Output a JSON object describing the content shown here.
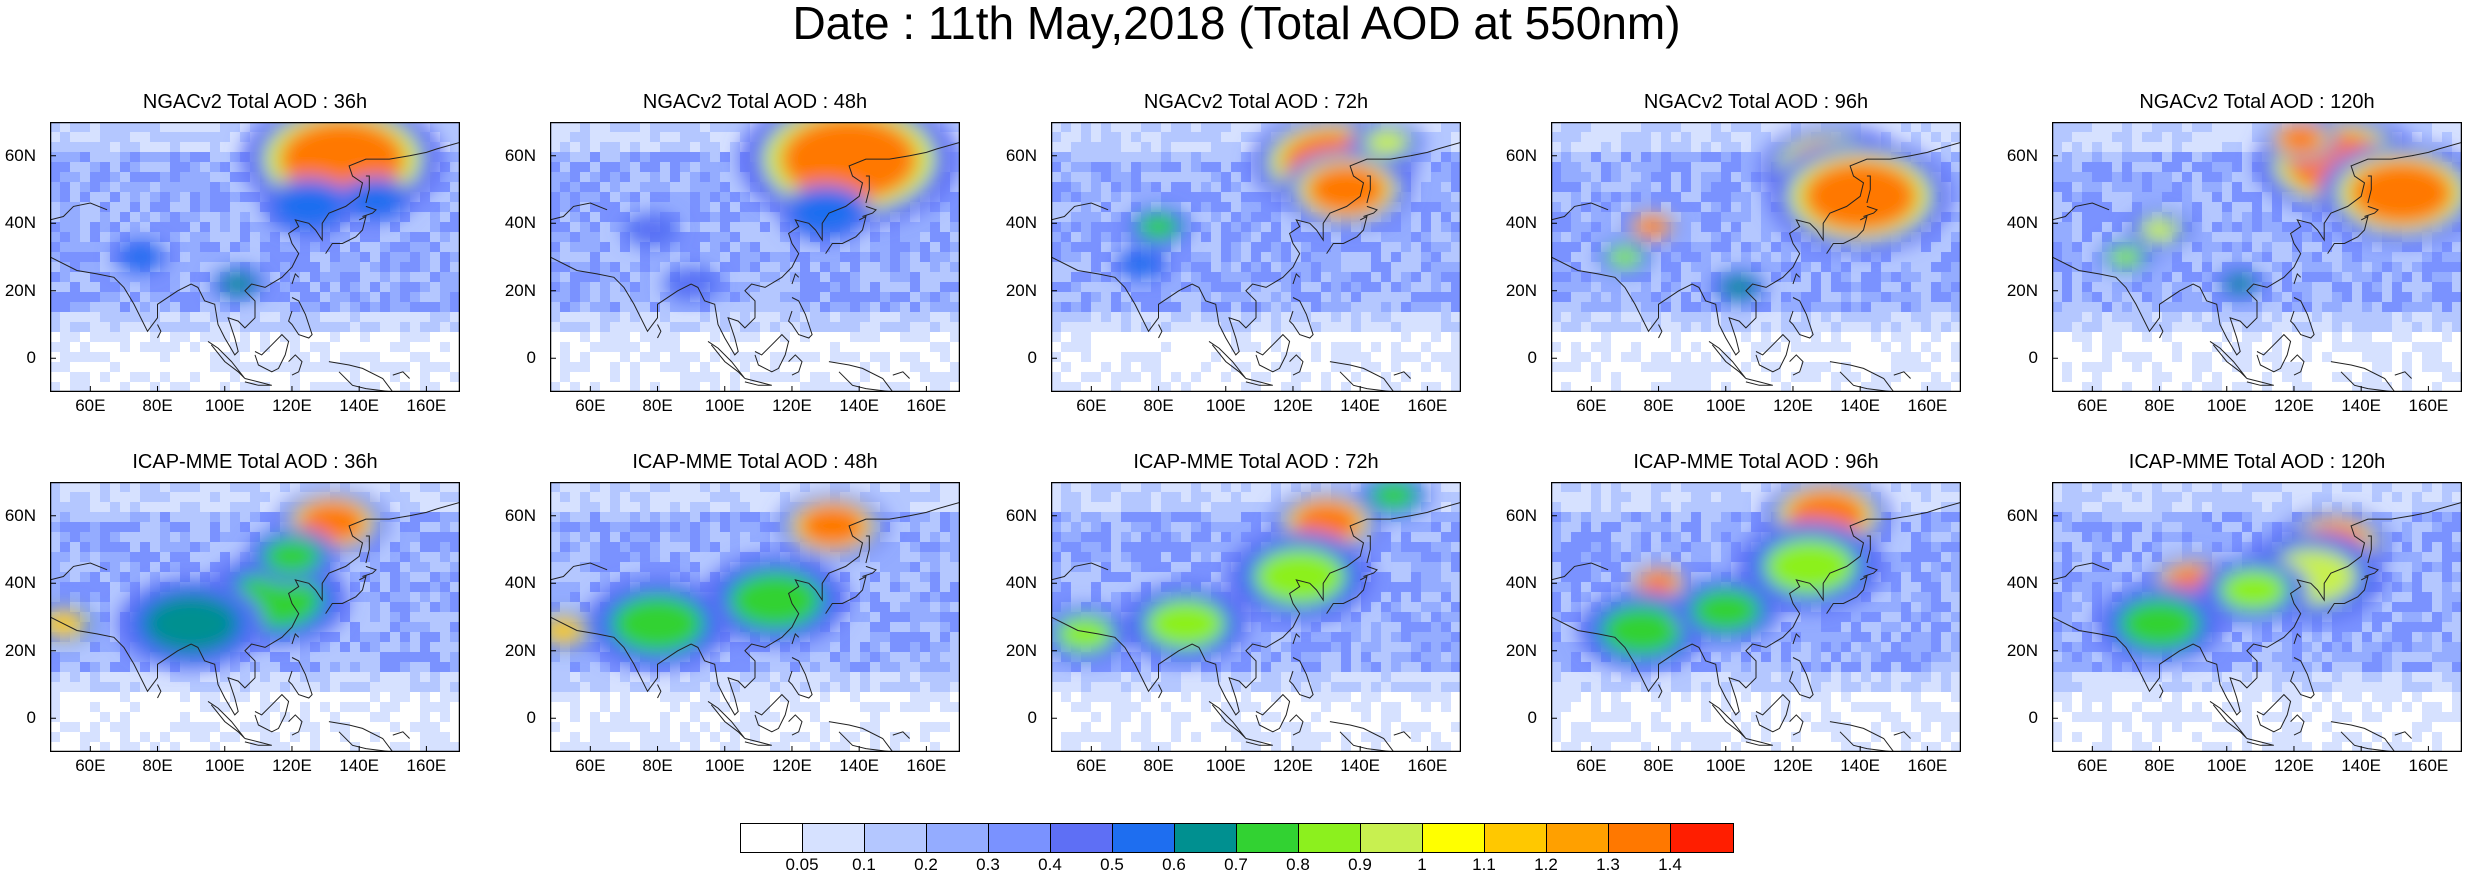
{
  "title": "Date : 11th May,2018 (Total AOD at 550nm)",
  "panels": [
    {
      "label": "NGACv2 Total AOD : 36h",
      "hotspots": [
        {
          "lon": 135,
          "lat": 59,
          "level": 14,
          "size": 2.2
        },
        {
          "lon": 125,
          "lat": 45,
          "level": 6,
          "size": 1.0
        },
        {
          "lon": 145,
          "lat": 47,
          "level": 6,
          "size": 0.8
        },
        {
          "lon": 104,
          "lat": 22,
          "level": 7,
          "size": 0.6
        },
        {
          "lon": 75,
          "lat": 30,
          "level": 6,
          "size": 0.6
        }
      ]
    },
    {
      "label": "NGACv2 Total AOD : 48h",
      "hotspots": [
        {
          "lon": 137,
          "lat": 59,
          "level": 14,
          "size": 2.4
        },
        {
          "lon": 130,
          "lat": 43,
          "level": 6,
          "size": 1.0
        },
        {
          "lon": 78,
          "lat": 38,
          "level": 5,
          "size": 0.6
        },
        {
          "lon": 90,
          "lat": 22,
          "level": 5,
          "size": 0.6
        }
      ]
    },
    {
      "label": "NGACv2 Total AOD : 72h",
      "hotspots": [
        {
          "lon": 132,
          "lat": 58,
          "level": 14,
          "size": 1.8
        },
        {
          "lon": 136,
          "lat": 50,
          "level": 14,
          "size": 1.4
        },
        {
          "lon": 80,
          "lat": 39,
          "level": 8,
          "size": 0.7
        },
        {
          "lon": 75,
          "lat": 28,
          "level": 6,
          "size": 0.6
        },
        {
          "lon": 148,
          "lat": 64,
          "level": 10,
          "size": 0.8
        }
      ]
    },
    {
      "label": "NGACv2 Total AOD : 96h",
      "hotspots": [
        {
          "lon": 132,
          "lat": 56,
          "level": 14,
          "size": 1.6
        },
        {
          "lon": 140,
          "lat": 48,
          "level": 14,
          "size": 2.0
        },
        {
          "lon": 78,
          "lat": 39,
          "level": 14,
          "size": 0.6
        },
        {
          "lon": 70,
          "lat": 30,
          "level": 9,
          "size": 0.6
        },
        {
          "lon": 104,
          "lat": 21,
          "level": 7,
          "size": 0.6
        }
      ]
    },
    {
      "label": "NGACv2 Total AOD : 120h",
      "hotspots": [
        {
          "lon": 133,
          "lat": 58,
          "level": 14,
          "size": 1.8
        },
        {
          "lon": 152,
          "lat": 49,
          "level": 14,
          "size": 1.8
        },
        {
          "lon": 122,
          "lat": 65,
          "level": 14,
          "size": 0.8
        },
        {
          "lon": 80,
          "lat": 38,
          "level": 10,
          "size": 0.7
        },
        {
          "lon": 70,
          "lat": 30,
          "level": 9,
          "size": 0.6
        },
        {
          "lon": 104,
          "lat": 22,
          "level": 7,
          "size": 0.5
        }
      ]
    },
    {
      "label": "ICAP-MME Total AOD : 36h",
      "hotspots": [
        {
          "lon": 132,
          "lat": 58,
          "level": 14,
          "size": 1.2
        },
        {
          "lon": 115,
          "lat": 35,
          "level": 8,
          "size": 1.6
        },
        {
          "lon": 90,
          "lat": 28,
          "level": 7,
          "size": 1.6
        },
        {
          "lon": 52,
          "lat": 28,
          "level": 12,
          "size": 0.7
        },
        {
          "lon": 120,
          "lat": 48,
          "level": 8,
          "size": 1.0
        }
      ]
    },
    {
      "label": "ICAP-MME Total AOD : 48h",
      "hotspots": [
        {
          "lon": 132,
          "lat": 57,
          "level": 14,
          "size": 1.2
        },
        {
          "lon": 115,
          "lat": 35,
          "level": 8,
          "size": 1.6
        },
        {
          "lon": 80,
          "lat": 28,
          "level": 8,
          "size": 1.6
        },
        {
          "lon": 52,
          "lat": 26,
          "level": 12,
          "size": 0.7
        }
      ]
    },
    {
      "label": "ICAP-MME Total AOD : 72h",
      "hotspots": [
        {
          "lon": 130,
          "lat": 58,
          "level": 14,
          "size": 1.2
        },
        {
          "lon": 122,
          "lat": 42,
          "level": 9,
          "size": 1.6
        },
        {
          "lon": 88,
          "lat": 28,
          "level": 9,
          "size": 1.4
        },
        {
          "lon": 58,
          "lat": 25,
          "level": 9,
          "size": 1.0
        },
        {
          "lon": 150,
          "lat": 66,
          "level": 8,
          "size": 0.8
        }
      ]
    },
    {
      "label": "ICAP-MME Total AOD : 96h",
      "hotspots": [
        {
          "lon": 130,
          "lat": 60,
          "level": 14,
          "size": 1.4
        },
        {
          "lon": 125,
          "lat": 45,
          "level": 9,
          "size": 1.6
        },
        {
          "lon": 80,
          "lat": 40,
          "level": 14,
          "size": 0.7
        },
        {
          "lon": 75,
          "lat": 26,
          "level": 8,
          "size": 1.4
        },
        {
          "lon": 100,
          "lat": 32,
          "level": 8,
          "size": 1.2
        }
      ]
    },
    {
      "label": "ICAP-MME Total AOD : 120h",
      "hotspots": [
        {
          "lon": 132,
          "lat": 52,
          "level": 14,
          "size": 1.2
        },
        {
          "lon": 90,
          "lat": 40,
          "level": 14,
          "size": 1.0
        },
        {
          "lon": 125,
          "lat": 42,
          "level": 10,
          "size": 1.6
        },
        {
          "lon": 80,
          "lat": 28,
          "level": 8,
          "size": 1.4
        },
        {
          "lon": 108,
          "lat": 38,
          "level": 9,
          "size": 1.2
        }
      ]
    }
  ],
  "map": {
    "lon_range": [
      48,
      170
    ],
    "lat_range": [
      -10,
      70
    ],
    "x_ticks": [
      "60E",
      "80E",
      "100E",
      "120E",
      "140E",
      "160E"
    ],
    "x_tick_values": [
      60,
      80,
      100,
      120,
      140,
      160
    ],
    "y_ticks": [
      "60N",
      "40N",
      "20N",
      "0"
    ],
    "y_tick_values": [
      60,
      40,
      20,
      0
    ]
  },
  "colorbar": {
    "colors": [
      "#ffffff",
      "#d6e1ff",
      "#b4c7ff",
      "#94acff",
      "#7a92ff",
      "#5e6ff5",
      "#1e6ef0",
      "#009090",
      "#32d232",
      "#8cf01e",
      "#c8f050",
      "#ffff00",
      "#ffc800",
      "#ffa000",
      "#ff7800",
      "#ff1e00"
    ],
    "labels": [
      "0.05",
      "0.1",
      "0.2",
      "0.3",
      "0.4",
      "0.5",
      "0.6",
      "0.7",
      "0.8",
      "0.9",
      "1",
      "1.1",
      "1.2",
      "1.3",
      "1.4"
    ]
  }
}
